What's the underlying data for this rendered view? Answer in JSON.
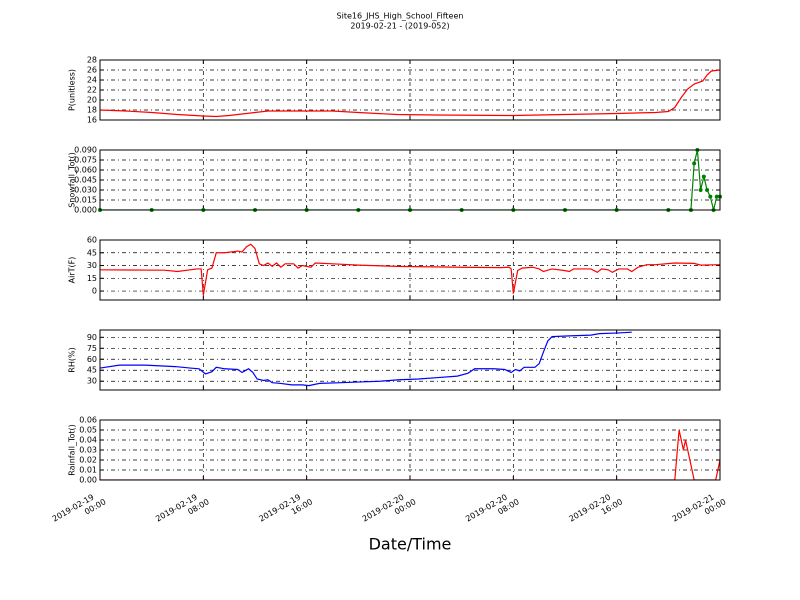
{
  "title": "Site16_JHS_High_School_Fifteen",
  "subtitle": "2019-02-21 - (2019-052)",
  "xlabel": "Date/Time",
  "chart_data": [
    {
      "type": "line",
      "ylabel": "P(unitless)",
      "color": "#ff0000",
      "grid": true,
      "xlim": [
        "2019-02-19 00:00",
        "2019-02-21 00:00"
      ],
      "xticks": [
        "2019-02-19 00:00",
        "2019-02-19 08:00",
        "2019-02-19 16:00",
        "2019-02-20 00:00",
        "2019-02-20 08:00",
        "2019-02-20 16:00",
        "2019-02-21 00:00"
      ],
      "ylim": [
        16,
        28
      ],
      "yticks": [
        16,
        18,
        20,
        22,
        24,
        26,
        28
      ],
      "x": [
        "2019-02-19 00:00",
        "2019-02-19 02:00",
        "2019-02-19 04:00",
        "2019-02-19 06:00",
        "2019-02-19 08:00",
        "2019-02-19 09:00",
        "2019-02-19 10:00",
        "2019-02-19 12:00",
        "2019-02-19 13:00",
        "2019-02-19 18:00",
        "2019-02-19 20:00",
        "2019-02-19 23:00",
        "2019-02-20 02:00",
        "2019-02-20 08:00",
        "2019-02-20 12:00",
        "2019-02-20 16:00",
        "2019-02-20 19:00",
        "2019-02-20 20:00",
        "2019-02-20 20:30",
        "2019-02-20 21:00",
        "2019-02-20 21:30",
        "2019-02-20 22:00",
        "2019-02-20 22:40",
        "2019-02-20 23:00",
        "2019-02-20 23:20",
        "2019-02-21 00:00"
      ],
      "values": [
        18.0,
        17.8,
        17.5,
        17.1,
        16.8,
        16.7,
        16.9,
        17.5,
        17.8,
        17.8,
        17.5,
        17.1,
        17.0,
        16.9,
        17.1,
        17.3,
        17.5,
        17.7,
        18.5,
        20.5,
        22.2,
        23.2,
        23.8,
        25.0,
        25.8,
        26.0
      ]
    },
    {
      "type": "line",
      "ylabel": "Snowfall_Tot()",
      "color": "#008000",
      "markers": true,
      "grid": true,
      "xlim": [
        "2019-02-19 00:00",
        "2019-02-21 00:00"
      ],
      "xticks": [
        "2019-02-19 00:00",
        "2019-02-19 08:00",
        "2019-02-19 16:00",
        "2019-02-20 00:00",
        "2019-02-20 08:00",
        "2019-02-20 16:00",
        "2019-02-21 00:00"
      ],
      "ylim": [
        0,
        0.09
      ],
      "yticks": [
        {
          "value": 0,
          "label": "0.000"
        },
        0.015,
        {
          "value": 0.03,
          "label": "0.030"
        },
        0.045,
        {
          "value": 0.06,
          "label": "0.060"
        },
        0.075,
        {
          "value": 0.09,
          "label": "0.090"
        }
      ],
      "x": [
        "2019-02-19 00:00",
        "2019-02-19 04:00",
        "2019-02-19 08:00",
        "2019-02-19 12:00",
        "2019-02-19 16:00",
        "2019-02-19 20:00",
        "2019-02-20 00:00",
        "2019-02-20 04:00",
        "2019-02-20 08:00",
        "2019-02-20 12:00",
        "2019-02-20 16:00",
        "2019-02-20 20:00",
        "2019-02-20 21:45",
        "2019-02-20 22:00",
        "2019-02-20 22:15",
        "2019-02-20 22:30",
        "2019-02-20 22:45",
        "2019-02-20 23:00",
        "2019-02-20 23:15",
        "2019-02-20 23:30",
        "2019-02-20 23:45",
        "2019-02-21 00:00"
      ],
      "values": [
        0,
        0,
        0,
        0,
        0,
        0,
        0,
        0,
        0,
        0,
        0,
        0,
        0,
        0.07,
        0.09,
        0.03,
        0.05,
        0.03,
        0.02,
        0,
        0.02,
        0.02
      ]
    },
    {
      "type": "line",
      "ylabel": "AirT(F)",
      "color": "#ff0000",
      "grid": true,
      "xlim": [
        "2019-02-19 00:00",
        "2019-02-21 00:00"
      ],
      "xticks": [
        "2019-02-19 00:00",
        "2019-02-19 08:00",
        "2019-02-19 16:00",
        "2019-02-20 00:00",
        "2019-02-20 08:00",
        "2019-02-20 16:00",
        "2019-02-21 00:00"
      ],
      "ylim": [
        -10.5,
        60
      ],
      "yticks": [
        0,
        15,
        30,
        45,
        60
      ],
      "x": [
        "2019-02-19 00:00",
        "2019-02-19 05:00",
        "2019-02-19 06:00",
        "2019-02-19 07:30",
        "2019-02-19 07:50",
        "2019-02-19 08:00",
        "2019-02-19 08:20",
        "2019-02-19 08:40",
        "2019-02-19 09:00",
        "2019-02-19 09:40",
        "2019-02-19 10:40",
        "2019-02-19 11:00",
        "2019-02-19 11:20",
        "2019-02-19 11:40",
        "2019-02-19 12:00",
        "2019-02-19 12:20",
        "2019-02-19 12:40",
        "2019-02-19 13:00",
        "2019-02-19 13:20",
        "2019-02-19 13:40",
        "2019-02-19 14:00",
        "2019-02-19 14:20",
        "2019-02-19 15:00",
        "2019-02-19 15:20",
        "2019-02-19 15:40",
        "2019-02-19 16:20",
        "2019-02-19 16:40",
        "2019-02-19 18:00",
        "2019-02-19 20:00",
        "2019-02-19 23:00",
        "2019-02-20 04:00",
        "2019-02-20 07:00",
        "2019-02-20 07:40",
        "2019-02-20 07:50",
        "2019-02-20 08:00",
        "2019-02-20 08:20",
        "2019-02-20 08:40",
        "2019-02-20 09:30",
        "2019-02-20 10:00",
        "2019-02-20 10:20",
        "2019-02-20 11:00",
        "2019-02-20 12:00",
        "2019-02-20 12:20",
        "2019-02-20 12:40",
        "2019-02-20 14:00",
        "2019-02-20 14:30",
        "2019-02-20 14:50",
        "2019-02-20 15:20",
        "2019-02-20 15:40",
        "2019-02-20 16:10",
        "2019-02-20 16:50",
        "2019-02-20 17:10",
        "2019-02-20 17:40",
        "2019-02-20 18:20",
        "2019-02-20 19:00",
        "2019-02-20 20:30",
        "2019-02-20 22:00",
        "2019-02-20 22:30",
        "2019-02-21 00:00"
      ],
      "values": [
        25,
        24.5,
        23,
        26,
        26,
        -5,
        25,
        27,
        45,
        45,
        47,
        46,
        52,
        55,
        50,
        32,
        30,
        33,
        29,
        33,
        28,
        32,
        32,
        27,
        30,
        28,
        33,
        32,
        30.5,
        29,
        28,
        27.5,
        28,
        26,
        -3,
        24,
        27,
        28,
        26,
        23,
        26,
        24,
        23,
        26,
        26,
        22,
        26,
        25,
        22,
        26,
        26,
        23,
        28,
        31,
        31,
        33,
        32.5,
        30.5,
        31
      ]
    },
    {
      "type": "line",
      "ylabel": "RH(%)",
      "color": "#0000ff",
      "grid": true,
      "xlim": [
        "2019-02-19 00:00",
        "2019-02-21 00:00"
      ],
      "xticks": [
        "2019-02-19 00:00",
        "2019-02-19 08:00",
        "2019-02-19 16:00",
        "2019-02-20 00:00",
        "2019-02-20 08:00",
        "2019-02-20 16:00",
        "2019-02-21 00:00"
      ],
      "ylim": [
        18,
        100
      ],
      "yticks": [
        30,
        45,
        60,
        75,
        90
      ],
      "x": [
        "2019-02-19 00:00",
        "2019-02-19 01:30",
        "2019-02-19 03:30",
        "2019-02-19 04:40",
        "2019-02-19 05:50",
        "2019-02-19 07:00",
        "2019-02-19 07:40",
        "2019-02-19 08:10",
        "2019-02-19 08:40",
        "2019-02-19 09:00",
        "2019-02-19 09:40",
        "2019-02-19 10:40",
        "2019-02-19 11:00",
        "2019-02-19 11:30",
        "2019-02-19 11:50",
        "2019-02-19 12:10",
        "2019-02-19 12:40",
        "2019-02-19 13:00",
        "2019-02-19 13:20",
        "2019-02-19 14:00",
        "2019-02-19 14:50",
        "2019-02-19 15:40",
        "2019-02-19 16:10",
        "2019-02-19 17:00",
        "2019-02-19 18:40",
        "2019-02-19 20:10",
        "2019-02-19 21:40",
        "2019-02-19 23:10",
        "2019-02-20 00:40",
        "2019-02-20 02:10",
        "2019-02-20 03:40",
        "2019-02-20 04:30",
        "2019-02-20 05:00",
        "2019-02-20 06:30",
        "2019-02-20 07:20",
        "2019-02-20 07:50",
        "2019-02-20 08:10",
        "2019-02-20 08:30",
        "2019-02-20 08:50",
        "2019-02-20 09:40",
        "2019-02-20 10:00",
        "2019-02-20 10:20",
        "2019-02-20 10:40",
        "2019-02-20 11:00",
        "2019-02-20 12:20",
        "2019-02-20 14:00",
        "2019-02-20 14:40",
        "2019-02-20 16:10",
        "2019-02-20 17:10",
        "2019-02-20 18:00",
        "2019-02-21 00:00"
      ],
      "values": [
        48,
        52,
        52,
        51,
        50,
        48,
        47,
        40,
        43,
        49,
        47,
        46,
        42,
        47,
        42,
        33,
        31,
        32,
        28,
        27,
        25,
        25,
        24,
        27,
        28,
        29,
        30,
        32,
        33,
        35,
        37,
        41,
        47,
        47,
        46,
        42,
        46,
        44,
        49,
        49,
        54,
        70,
        85,
        91,
        92,
        93,
        95,
        96,
        97,
        null,
        null
      ]
    },
    {
      "type": "line",
      "ylabel": "Rainfall_Tot()",
      "color": "#ff0000",
      "grid": true,
      "xlim": [
        "2019-02-19 00:00",
        "2019-02-21 00:00"
      ],
      "xticks": [
        "2019-02-19 00:00",
        "2019-02-19 08:00",
        "2019-02-19 16:00",
        "2019-02-20 00:00",
        "2019-02-20 08:00",
        "2019-02-20 16:00",
        "2019-02-21 00:00"
      ],
      "ylim": [
        0,
        0.06
      ],
      "yticks": [
        {
          "value": 0,
          "label": "0.00"
        },
        0.01,
        0.02,
        0.03,
        0.04,
        0.05,
        0.06
      ],
      "x": [
        "2019-02-19 00:00",
        "2019-02-20 20:30",
        "2019-02-20 20:50",
        "2019-02-20 21:10",
        "2019-02-20 21:20",
        "2019-02-20 21:40",
        "2019-02-20 22:00",
        "2019-02-20 23:40",
        "2019-02-21 00:00"
      ],
      "values": [
        0,
        0,
        0.05,
        0.03,
        0.04,
        0.02,
        0,
        0,
        0.02
      ]
    }
  ]
}
